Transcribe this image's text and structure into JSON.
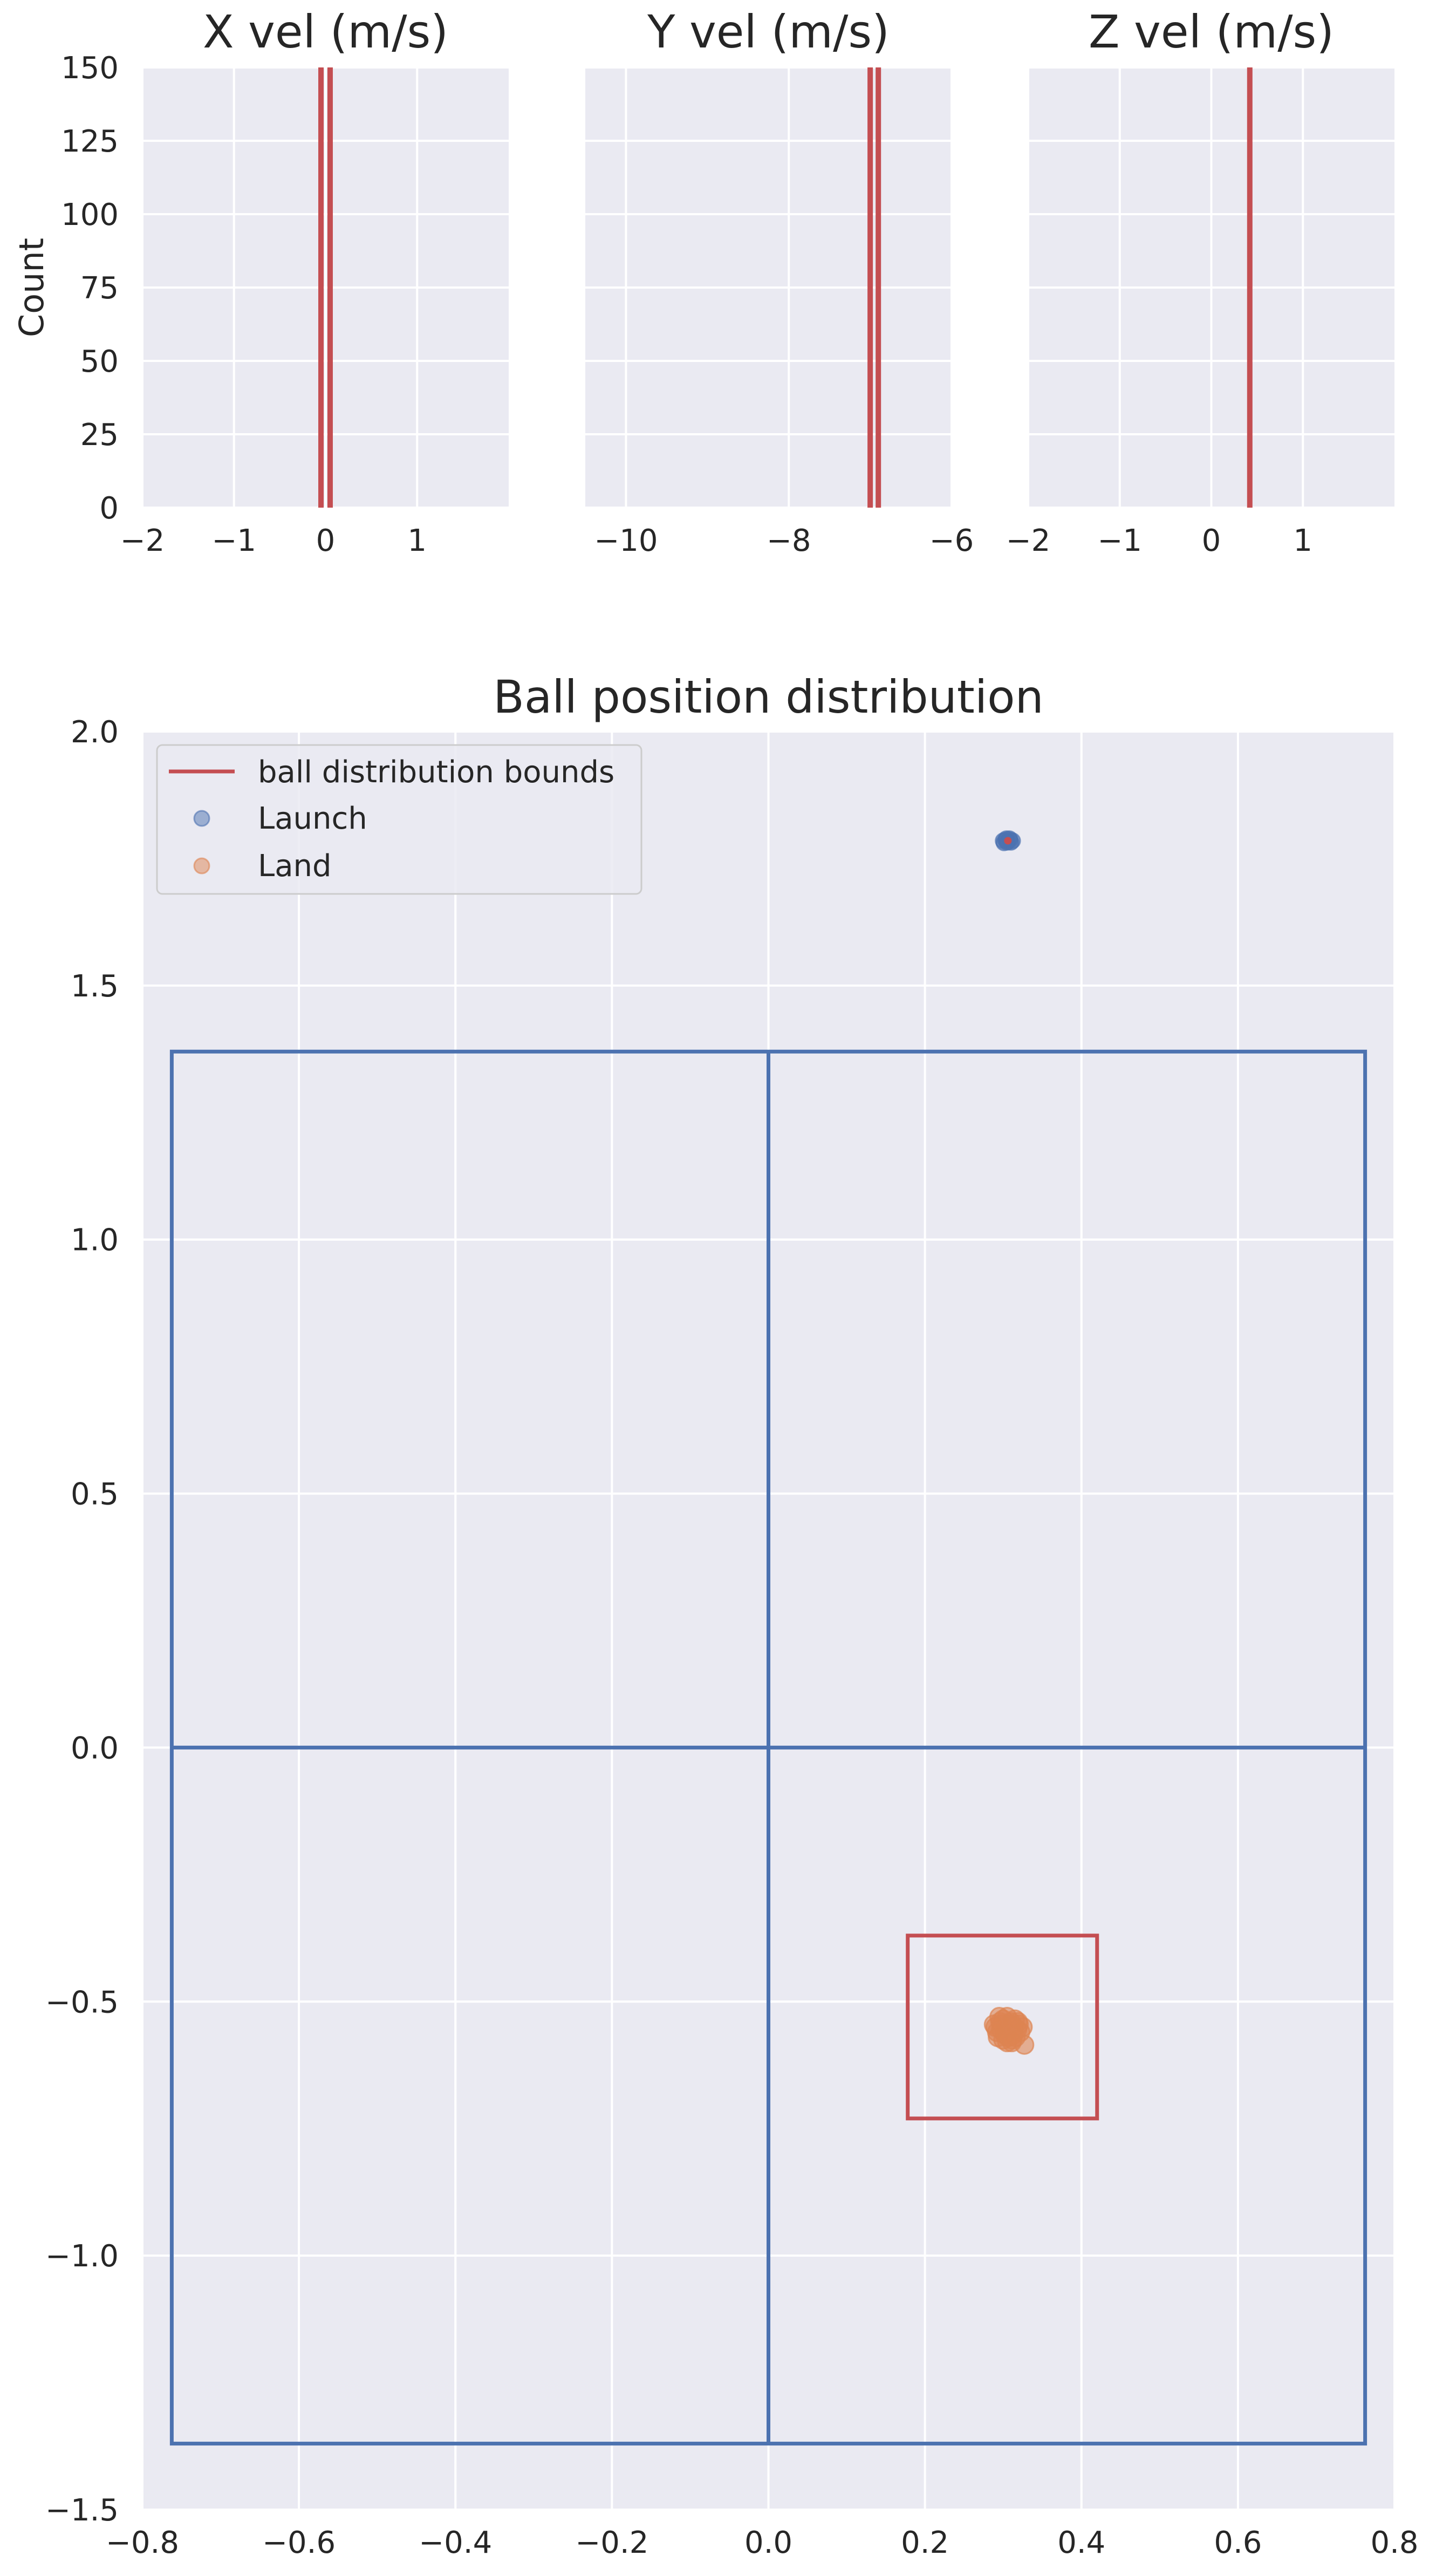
{
  "chart_data": [
    {
      "type": "histogram",
      "title": "X vel (m/s)",
      "ylabel": "Count",
      "xlim": [
        -2,
        2
      ],
      "ylim": [
        0,
        150
      ],
      "xticks": [
        -2,
        -1,
        0,
        1
      ],
      "xtick_labels": [
        "−2",
        "−1",
        "0",
        "1"
      ],
      "yticks": [
        0,
        25,
        50,
        75,
        100,
        125,
        150
      ],
      "ytick_labels": [
        "0",
        "25",
        "50",
        "75",
        "100",
        "125",
        "150"
      ],
      "vlines": [
        -0.05,
        0.05
      ],
      "grid": true
    },
    {
      "type": "histogram",
      "title": "Y vel (m/s)",
      "xlim": [
        -10.5,
        -6.0
      ],
      "ylim": [
        0,
        150
      ],
      "xticks": [
        -10,
        -8,
        -6
      ],
      "xtick_labels": [
        "−10",
        "−8",
        "−6"
      ],
      "yticks": [
        0,
        25,
        50,
        75,
        100,
        125,
        150
      ],
      "vlines": [
        -7.0,
        -6.9
      ],
      "grid": true
    },
    {
      "type": "histogram",
      "title": "Z vel (m/s)",
      "xlim": [
        -2,
        2
      ],
      "ylim": [
        0,
        150
      ],
      "xticks": [
        -2,
        -1,
        0,
        1
      ],
      "xtick_labels": [
        "−2",
        "−1",
        "0",
        "1"
      ],
      "yticks": [
        0,
        25,
        50,
        75,
        100,
        125,
        150
      ],
      "vlines": [
        0.42
      ],
      "grid": true
    },
    {
      "type": "scatter",
      "title": "Ball position distribution",
      "xlim": [
        -0.8,
        0.8
      ],
      "ylim": [
        -1.5,
        2.0
      ],
      "xticks": [
        -0.8,
        -0.6,
        -0.4,
        -0.2,
        0.0,
        0.2,
        0.4,
        0.6,
        0.8
      ],
      "xtick_labels": [
        "−0.8",
        "−0.6",
        "−0.4",
        "−0.2",
        "0.0",
        "0.2",
        "0.4",
        "0.6",
        "0.8"
      ],
      "yticks": [
        -1.5,
        -1.0,
        -0.5,
        0.0,
        0.5,
        1.0,
        1.5,
        2.0
      ],
      "ytick_labels": [
        "−1.5",
        "−1.0",
        "−0.5",
        "0.0",
        "0.5",
        "1.0",
        "1.5",
        "2.0"
      ],
      "grid": true,
      "legend_position": "upper-left",
      "legend": [
        {
          "label": "ball distribution bounds",
          "kind": "line",
          "color": "#c44e52"
        },
        {
          "label": "Launch",
          "kind": "marker",
          "color": "#4c72b0"
        },
        {
          "label": "Land",
          "kind": "marker",
          "color": "#dd8452"
        }
      ],
      "table_outline": {
        "color": "#4c72b0",
        "x": [
          -0.7625,
          0.7625
        ],
        "y": [
          -1.37,
          1.37
        ],
        "center_x": 0.0,
        "center_y": 0.0
      },
      "bounds_box": {
        "color": "#c44e52",
        "x": [
          0.178,
          0.42
        ],
        "y": [
          -0.73,
          -0.37
        ]
      },
      "launch": {
        "color": "#4c72b0",
        "points": [
          [
            0.3,
            1.785
          ],
          [
            0.303,
            1.786
          ],
          [
            0.306,
            1.784
          ],
          [
            0.309,
            1.786
          ],
          [
            0.312,
            1.785
          ],
          [
            0.301,
            1.781
          ],
          [
            0.305,
            1.782
          ],
          [
            0.31,
            1.782
          ],
          [
            0.304,
            1.789
          ],
          [
            0.308,
            1.789
          ]
        ]
      },
      "launch_marker": {
        "x": 0.306,
        "y": 1.785,
        "color": "#c44e52"
      },
      "land": {
        "color": "#dd8452",
        "points": [
          [
            0.295,
            -0.53
          ],
          [
            0.3,
            -0.535
          ],
          [
            0.305,
            -0.53
          ],
          [
            0.31,
            -0.54
          ],
          [
            0.315,
            -0.535
          ],
          [
            0.32,
            -0.545
          ],
          [
            0.29,
            -0.55
          ],
          [
            0.297,
            -0.555
          ],
          [
            0.303,
            -0.56
          ],
          [
            0.308,
            -0.55
          ],
          [
            0.313,
            -0.565
          ],
          [
            0.318,
            -0.555
          ],
          [
            0.293,
            -0.57
          ],
          [
            0.3,
            -0.575
          ],
          [
            0.306,
            -0.57
          ],
          [
            0.311,
            -0.58
          ],
          [
            0.316,
            -0.57
          ],
          [
            0.322,
            -0.56
          ],
          [
            0.298,
            -0.545
          ],
          [
            0.309,
            -0.545
          ],
          [
            0.302,
            -0.565
          ],
          [
            0.314,
            -0.55
          ],
          [
            0.296,
            -0.54
          ],
          [
            0.319,
            -0.54
          ],
          [
            0.305,
            -0.58
          ],
          [
            0.325,
            -0.55
          ],
          [
            0.288,
            -0.545
          ],
          [
            0.327,
            -0.585
          ],
          [
            0.292,
            -0.56
          ],
          [
            0.312,
            -0.575
          ]
        ]
      }
    }
  ]
}
